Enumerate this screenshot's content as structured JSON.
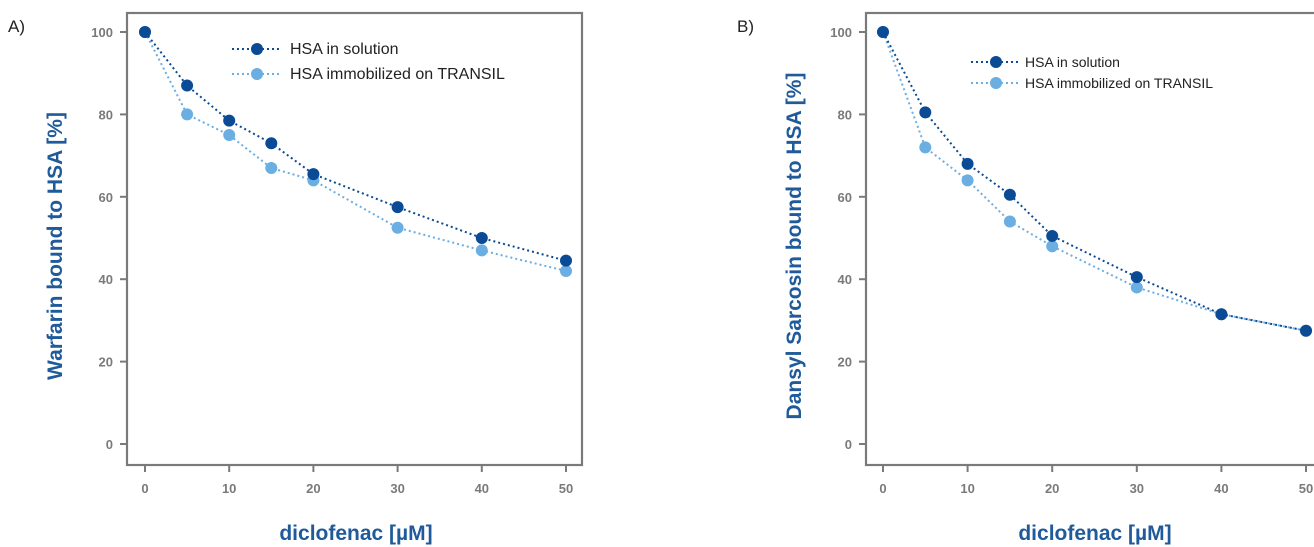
{
  "colors": {
    "series_dark": "#0b4a94",
    "series_light": "#6aaee2",
    "frame": "#7a7a7a",
    "axis_title": "#1f5a9a"
  },
  "chart_data": [
    {
      "panel": "A)",
      "type": "line",
      "x": [
        0,
        5,
        10,
        15,
        20,
        30,
        40,
        50
      ],
      "xticks": [
        "0",
        "10",
        "20",
        "30",
        "40",
        "50"
      ],
      "yticks": [
        "0",
        "20",
        "40",
        "60",
        "80",
        "100"
      ],
      "xlim": [
        0,
        50
      ],
      "ylim": [
        0,
        100
      ],
      "xlabel": "diclofenac [µM]",
      "ylabel": "Warfarin bound to HSA [%]",
      "legend_position": "top-right",
      "series": [
        {
          "name": "HSA in solution",
          "values": [
            100,
            87,
            78.5,
            73,
            65.5,
            57.5,
            50,
            44.5
          ]
        },
        {
          "name": "HSA immobilized on TRANSIL",
          "values": [
            100,
            80,
            75,
            67,
            64,
            52.5,
            47,
            42
          ]
        }
      ]
    },
    {
      "panel": "B)",
      "type": "line",
      "x": [
        0,
        5,
        10,
        15,
        20,
        30,
        40,
        50
      ],
      "xticks": [
        "0",
        "10",
        "20",
        "30",
        "40",
        "50"
      ],
      "yticks": [
        "0",
        "20",
        "40",
        "60",
        "80",
        "100"
      ],
      "xlim": [
        0,
        50
      ],
      "ylim": [
        0,
        100
      ],
      "xlabel": "diclofenac [µM]",
      "ylabel": "Dansyl Sarcosin bound to HSA [%]",
      "legend_position": "top-right",
      "series": [
        {
          "name": "HSA in solution",
          "values": [
            100,
            80.5,
            68,
            60.5,
            50.5,
            40.5,
            31.5,
            27.5
          ]
        },
        {
          "name": "HSA immobilized on TRANSIL",
          "values": [
            100,
            72,
            64,
            54,
            48,
            38,
            31.5,
            27.5
          ]
        }
      ]
    }
  ]
}
